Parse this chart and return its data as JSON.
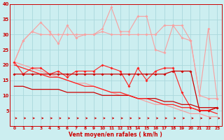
{
  "xlabel": "Vent moyen/en rafales ( km/h )",
  "background_color": "#cceef0",
  "grid_color": "#aad8dc",
  "x": [
    0,
    1,
    2,
    3,
    4,
    5,
    6,
    7,
    8,
    9,
    10,
    11,
    12,
    13,
    14,
    15,
    16,
    17,
    18,
    19,
    20,
    21,
    22,
    23
  ],
  "upper_spiky": [
    21,
    28,
    31,
    34,
    31,
    27,
    33,
    29,
    30,
    30,
    32,
    39,
    31,
    31,
    36,
    36,
    25,
    24,
    33,
    33,
    28,
    10,
    32,
    9
  ],
  "upper_smooth": [
    21,
    28,
    31,
    30,
    30,
    30,
    30,
    30,
    30,
    30,
    31,
    30,
    30,
    30,
    30,
    30,
    30,
    33,
    33,
    29,
    28,
    10,
    9,
    9
  ],
  "upper_trend": [
    21,
    20,
    19,
    18,
    17,
    16,
    15,
    14,
    14,
    13,
    12,
    11,
    10,
    10,
    9,
    8,
    7,
    7,
    6,
    5,
    4,
    4,
    3,
    3
  ],
  "mid_spiky": [
    21,
    17,
    19,
    19,
    17,
    18,
    16,
    18,
    18,
    18,
    20,
    19,
    18,
    13,
    19,
    15,
    18,
    19,
    19,
    11,
    6,
    5,
    5,
    6
  ],
  "mid_flat": [
    17,
    17,
    17,
    17,
    17,
    17,
    17,
    17,
    17,
    17,
    17,
    17,
    17,
    17,
    17,
    17,
    17,
    17,
    18,
    18,
    18,
    5,
    5,
    6
  ],
  "lower_trend": [
    13,
    13,
    12,
    12,
    12,
    12,
    11,
    11,
    11,
    11,
    10,
    10,
    10,
    10,
    9,
    9,
    9,
    8,
    8,
    7,
    7,
    6,
    6,
    6
  ],
  "lower_trend2": [
    20,
    19,
    18,
    17,
    16,
    16,
    15,
    14,
    13,
    13,
    12,
    11,
    11,
    10,
    9,
    9,
    8,
    7,
    7,
    6,
    6,
    5,
    5,
    4
  ],
  "ylim": [
    0,
    40
  ],
  "yticks": [
    5,
    10,
    15,
    20,
    25,
    30,
    35,
    40
  ],
  "light_pink": "#f8a0a0",
  "medium_pink": "#f06060",
  "dark_red": "#cc0000",
  "bright_red": "#ff2020"
}
